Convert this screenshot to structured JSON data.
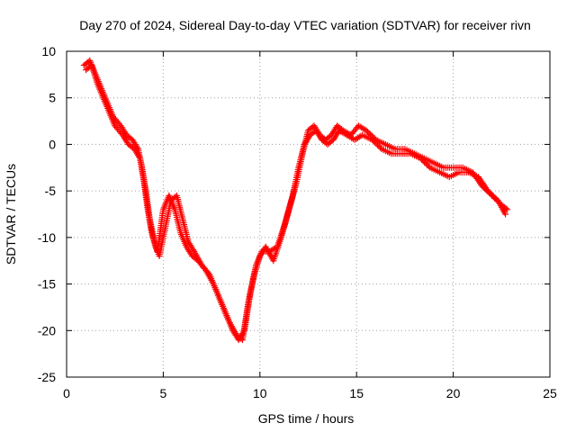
{
  "chart_data": {
    "type": "scatter",
    "title": "Day 270 of 2024, Sidereal Day-to-day VTEC variation (SDTVAR) for receiver rivn",
    "xlabel": "GPS time / hours",
    "ylabel": "SDTVAR / TECUs",
    "xlim": [
      0,
      25
    ],
    "ylim": [
      -25,
      10
    ],
    "xticks": [
      0,
      5,
      10,
      15,
      20,
      25
    ],
    "yticks": [
      -25,
      -20,
      -15,
      -10,
      -5,
      0,
      5,
      10
    ],
    "grid": true,
    "marker": "+",
    "color": "#ff0000",
    "series": [
      {
        "name": "SDTVAR",
        "x": [
          0.9,
          1.2,
          1.5,
          1.8,
          2.1,
          2.4,
          2.8,
          3.1,
          3.4,
          3.7,
          3.9,
          4.1,
          4.3,
          4.5,
          4.7,
          5.0,
          5.3,
          5.6,
          5.9,
          6.2,
          6.5,
          6.8,
          7.2,
          7.6,
          8.0,
          8.4,
          8.8,
          9.1,
          9.4,
          9.7,
          10.0,
          10.3,
          10.7,
          11.1,
          11.5,
          11.9,
          12.2,
          12.5,
          12.8,
          13.1,
          13.4,
          13.7,
          14.0,
          14.3,
          14.7,
          15.1,
          15.5,
          16.0,
          16.5,
          17.0,
          17.5,
          18.0,
          18.5,
          19.0,
          19.5,
          20.0,
          20.5,
          21.0,
          21.5,
          22.0,
          22.5,
          22.8
        ],
        "y": [
          8.5,
          9.0,
          7.5,
          6.0,
          4.5,
          3.0,
          2.0,
          1.0,
          0.5,
          -0.5,
          -2.5,
          -5.0,
          -8.0,
          -10.0,
          -11.5,
          -7.0,
          -5.5,
          -7.0,
          -9.5,
          -11.0,
          -12.0,
          -12.5,
          -13.5,
          -15.0,
          -17.0,
          -19.0,
          -20.5,
          -21.0,
          -17.0,
          -14.0,
          -12.0,
          -11.0,
          -12.5,
          -10.0,
          -7.0,
          -4.0,
          -1.0,
          1.5,
          2.0,
          1.0,
          0.5,
          1.0,
          2.0,
          1.5,
          1.0,
          2.0,
          1.5,
          0.5,
          0.0,
          -0.5,
          -0.5,
          -1.0,
          -1.5,
          -2.0,
          -2.5,
          -2.5,
          -2.5,
          -3.0,
          -4.5,
          -5.5,
          -6.5,
          -7.0
        ]
      },
      {
        "name": "SDTVAR",
        "x": [
          1.0,
          1.3,
          1.6,
          1.9,
          2.2,
          2.5,
          2.9,
          3.2,
          3.5,
          3.8,
          4.0,
          4.2,
          4.4,
          4.6,
          4.8,
          5.1,
          5.4,
          5.7,
          6.0,
          6.3,
          6.6,
          7.0,
          7.4,
          7.8,
          8.2,
          8.6,
          8.9,
          9.2,
          9.5,
          9.8,
          10.1,
          10.5,
          10.9,
          11.3,
          11.7,
          12.0,
          12.3,
          12.6,
          12.9,
          13.2,
          13.5,
          13.8,
          14.1,
          14.5,
          14.9,
          15.3,
          15.8,
          16.3,
          16.8,
          17.3,
          17.8,
          18.3,
          18.8,
          19.3,
          19.8,
          20.3,
          20.8,
          21.3,
          21.8,
          22.3,
          22.7
        ],
        "y": [
          8.0,
          8.5,
          6.5,
          5.0,
          3.5,
          2.0,
          1.0,
          0.0,
          -0.5,
          -1.5,
          -4.0,
          -7.0,
          -9.5,
          -11.0,
          -12.0,
          -9.0,
          -6.0,
          -5.5,
          -8.0,
          -10.5,
          -11.5,
          -13.0,
          -14.0,
          -16.0,
          -18.0,
          -20.0,
          -21.0,
          -20.0,
          -16.0,
          -13.0,
          -11.5,
          -11.5,
          -11.0,
          -8.5,
          -5.5,
          -2.5,
          0.0,
          1.0,
          1.5,
          0.5,
          0.0,
          0.5,
          1.5,
          1.0,
          0.5,
          1.0,
          0.5,
          -0.5,
          -1.0,
          -1.0,
          -1.0,
          -1.5,
          -2.5,
          -3.0,
          -3.5,
          -3.0,
          -3.0,
          -3.5,
          -5.0,
          -6.0,
          -7.5
        ]
      }
    ]
  }
}
